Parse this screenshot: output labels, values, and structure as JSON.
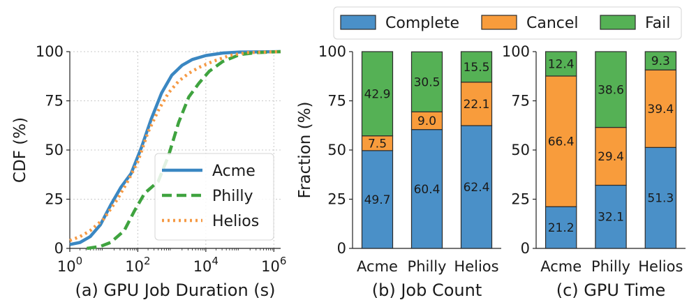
{
  "chart_data": [
    {
      "type": "line",
      "caption": "(a) GPU Job Duration (s)",
      "ylabel": "CDF (%)",
      "x_scale": "log",
      "x_ticks": [
        {
          "base": "10",
          "exp": "0"
        },
        {
          "base": "10",
          "exp": "2"
        },
        {
          "base": "10",
          "exp": "4"
        },
        {
          "base": "10",
          "exp": "6"
        }
      ],
      "y_ticks": [
        "0",
        "25",
        "50",
        "75",
        "100"
      ],
      "xlim_log10": [
        0,
        6.2
      ],
      "ylim": [
        0,
        100
      ],
      "grid": true,
      "legend_position": "lower-right",
      "series": [
        {
          "name": "Acme",
          "color": "#3a87c2",
          "style": "solid",
          "points": [
            [
              0,
              2
            ],
            [
              0.3,
              3
            ],
            [
              0.6,
              6
            ],
            [
              0.9,
              12
            ],
            [
              1.2,
              22
            ],
            [
              1.5,
              31
            ],
            [
              1.8,
              38
            ],
            [
              2.1,
              51
            ],
            [
              2.4,
              66
            ],
            [
              2.7,
              79
            ],
            [
              3.0,
              88
            ],
            [
              3.3,
              93
            ],
            [
              3.6,
              96
            ],
            [
              4.0,
              98
            ],
            [
              4.5,
              99.3
            ],
            [
              5.0,
              99.8
            ],
            [
              6.2,
              100
            ]
          ]
        },
        {
          "name": "Philly",
          "color": "#3fa33f",
          "style": "dashed",
          "points": [
            [
              0.5,
              0
            ],
            [
              0.9,
              1
            ],
            [
              1.2,
              3
            ],
            [
              1.6,
              9
            ],
            [
              1.9,
              19
            ],
            [
              2.2,
              28
            ],
            [
              2.6,
              34
            ],
            [
              2.9,
              47
            ],
            [
              3.2,
              64
            ],
            [
              3.5,
              77
            ],
            [
              3.8,
              84
            ],
            [
              4.1,
              90
            ],
            [
              4.5,
              95
            ],
            [
              5.0,
              98.5
            ],
            [
              5.5,
              99.5
            ],
            [
              6.2,
              100
            ]
          ]
        },
        {
          "name": "Helios",
          "color": "#f59a45",
          "style": "dotted",
          "points": [
            [
              0,
              4
            ],
            [
              0.3,
              6
            ],
            [
              0.6,
              9
            ],
            [
              1.0,
              15
            ],
            [
              1.4,
              25
            ],
            [
              1.7,
              34
            ],
            [
              2.0,
              44
            ],
            [
              2.3,
              59
            ],
            [
              2.6,
              70
            ],
            [
              2.9,
              79
            ],
            [
              3.2,
              85
            ],
            [
              3.5,
              89
            ],
            [
              3.8,
              92
            ],
            [
              4.2,
              95
            ],
            [
              4.7,
              98
            ],
            [
              5.2,
              99.5
            ],
            [
              6.2,
              100
            ]
          ]
        }
      ]
    },
    {
      "type": "bar",
      "stacked": true,
      "caption": "(b) Job Count",
      "ylabel": "Fraction (%)",
      "categories": [
        "Acme",
        "Philly",
        "Helios"
      ],
      "y_ticks": [
        "0",
        "25",
        "50",
        "75",
        "100"
      ],
      "ylim": [
        0,
        100
      ],
      "series": [
        {
          "name": "Complete",
          "values": [
            49.7,
            60.4,
            62.4
          ],
          "labels": [
            "49.7",
            "60.4",
            "62.4"
          ]
        },
        {
          "name": "Cancel",
          "values": [
            7.5,
            9.0,
            22.1
          ],
          "labels": [
            "7.5",
            "9.0",
            "22.1"
          ]
        },
        {
          "name": "Fail",
          "values": [
            42.9,
            30.5,
            15.5
          ],
          "labels": [
            "42.9",
            "30.5",
            "15.5"
          ]
        }
      ]
    },
    {
      "type": "bar",
      "stacked": true,
      "caption": "(c) GPU Time",
      "categories": [
        "Acme",
        "Philly",
        "Helios"
      ],
      "y_ticks": [
        "0",
        "25",
        "50",
        "75",
        "100"
      ],
      "ylim": [
        0,
        100
      ],
      "series": [
        {
          "name": "Complete",
          "values": [
            21.2,
            32.1,
            51.3
          ],
          "labels": [
            "21.2",
            "32.1",
            "51.3"
          ]
        },
        {
          "name": "Cancel",
          "values": [
            66.4,
            29.4,
            39.4
          ],
          "labels": [
            "66.4",
            "29.4",
            "39.4"
          ]
        },
        {
          "name": "Fail",
          "values": [
            12.4,
            38.6,
            9.3
          ],
          "labels": [
            "12.4",
            "38.6",
            "9.3"
          ]
        }
      ]
    }
  ],
  "bar_legend": {
    "position": "top",
    "items": [
      {
        "name": "Complete",
        "color": "#4a90c8"
      },
      {
        "name": "Cancel",
        "color": "#f89c3c"
      },
      {
        "name": "Fail",
        "color": "#55b155"
      }
    ]
  }
}
